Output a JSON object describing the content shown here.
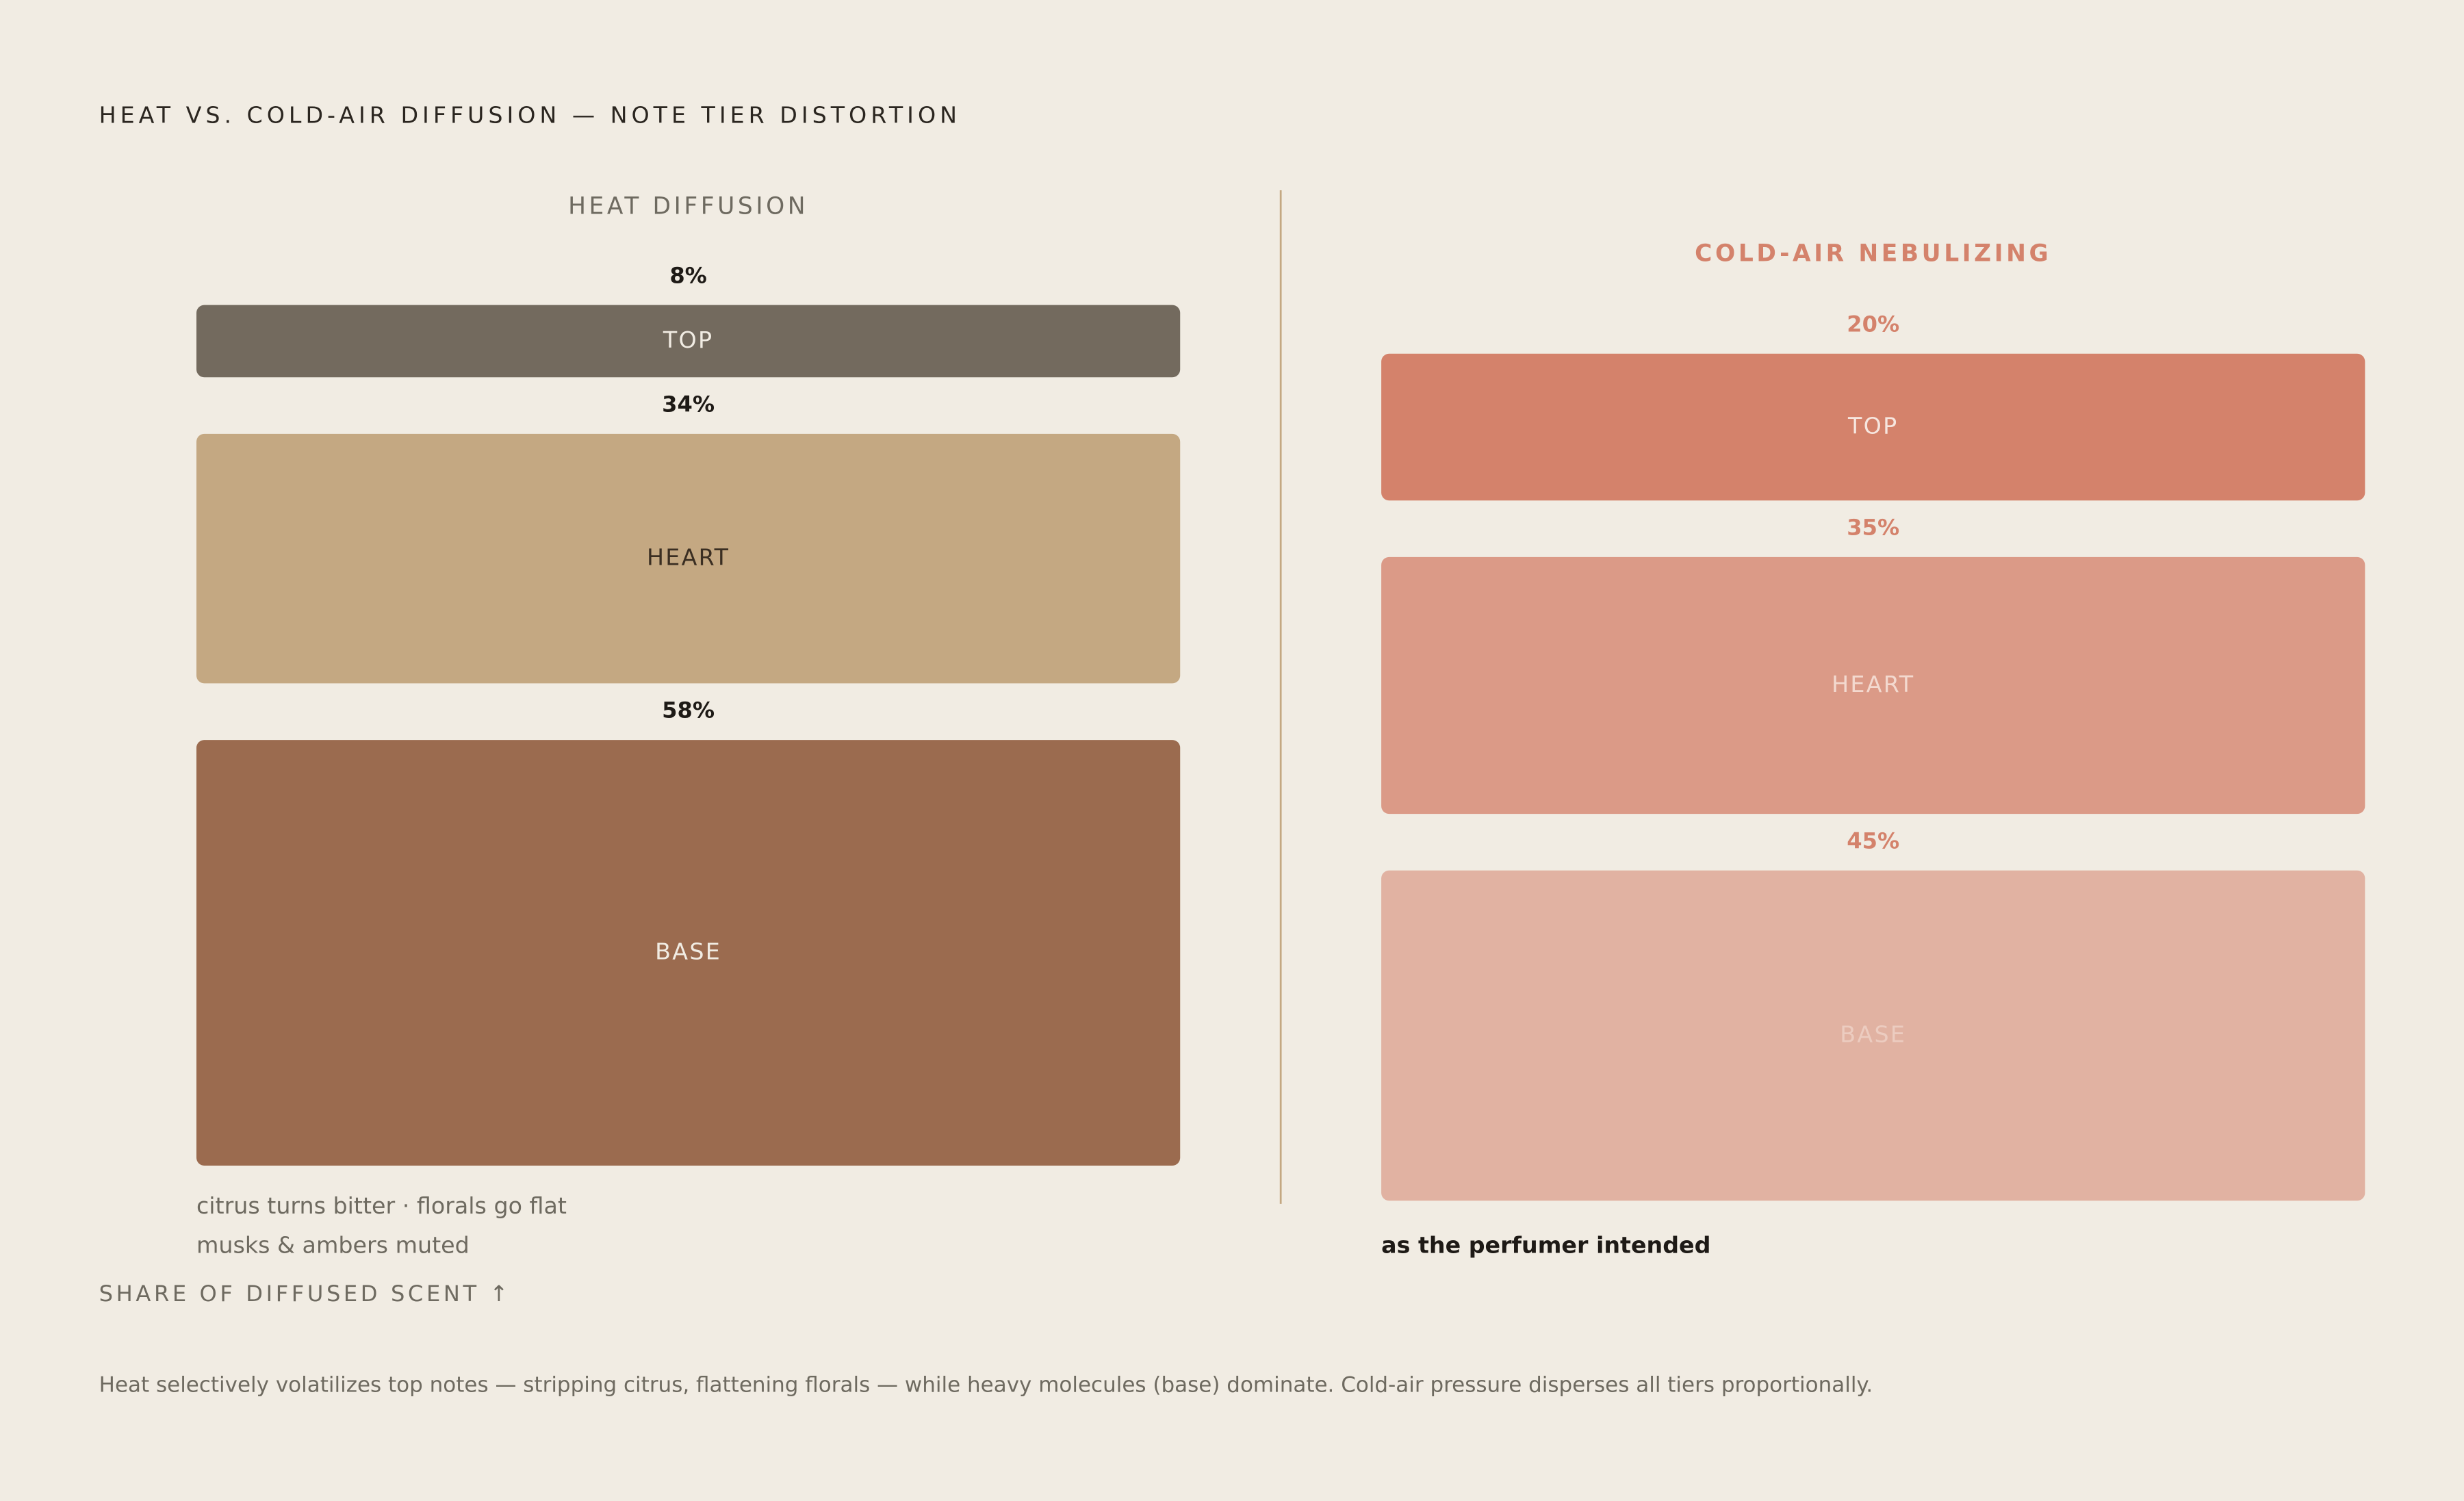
{
  "title": "HEAT VS. COLD-AIR DIFFUSION — NOTE TIER DISTORTION",
  "axis_label": "SHARE OF DIFFUSED SCENT ↑",
  "note": "Heat selectively volatilizes top notes — stripping citrus, flattening florals — while heavy molecules (base) dominate. Cold-air pressure disperses all tiers proportionally.",
  "chart_data": [
    {
      "type": "tier-stack",
      "title": "HEAT DIFFUSION",
      "categories": [
        "TOP",
        "HEART",
        "BASE"
      ],
      "values": [
        8,
        34,
        58
      ],
      "value_labels": [
        "8%",
        "34%",
        "58%"
      ],
      "colors": [
        "#736a5e",
        "#c4a882",
        "#9b6b4f"
      ],
      "annotations": [
        "citrus turns bitter · florals go flat",
        "musks & ambers muted"
      ]
    },
    {
      "type": "tier-stack",
      "title": "COLD-AIR NEBULIZING",
      "categories": [
        "TOP",
        "HEART",
        "BASE"
      ],
      "values": [
        20,
        35,
        45
      ],
      "value_labels": [
        "20%",
        "35%",
        "45%"
      ],
      "colors": [
        "#d4826b",
        "#db9a87",
        "#e1b2a2"
      ],
      "annotations": [
        "as the perfumer intended"
      ]
    }
  ]
}
